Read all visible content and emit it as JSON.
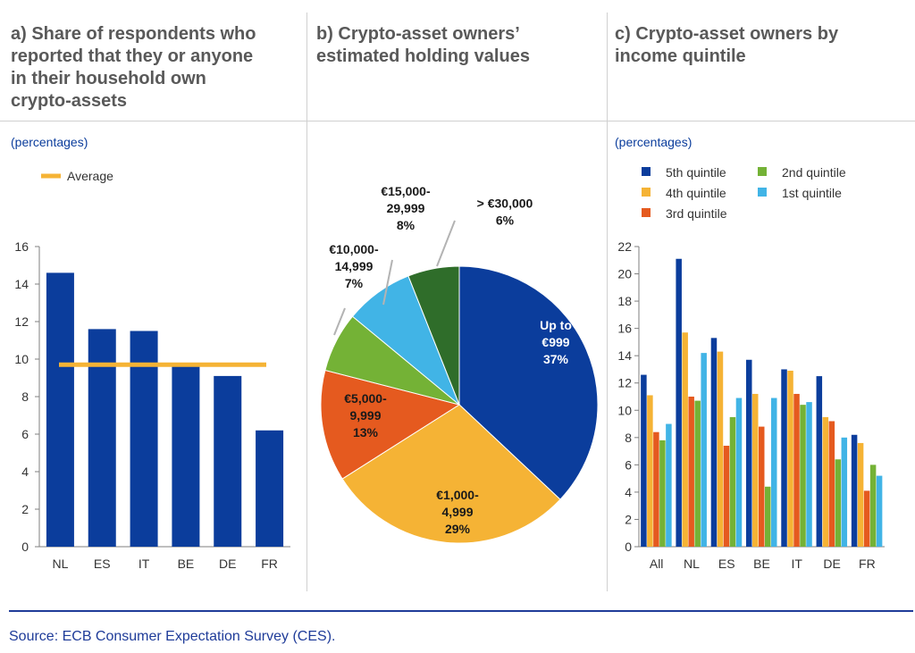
{
  "source": "Source: ECB Consumer Expectation Survey (CES).",
  "panels": {
    "a": {
      "title": [
        "a) Share of respondents who",
        "reported that they or anyone",
        "in their household own",
        "crypto-assets"
      ],
      "units": "(percentages)"
    },
    "b": {
      "title": [
        "b) Crypto-asset owners’",
        "estimated holding values"
      ]
    },
    "c": {
      "title": [
        "c) Crypto-asset owners by",
        "income quintile"
      ],
      "units": "(percentages)"
    }
  },
  "colors": {
    "navy": "#0b3d9c",
    "orange": "#f5b335",
    "red": "#e55a1f",
    "green": "#74b236",
    "lightblue": "#41b4e6",
    "darkgreen": "#2f6d2a",
    "axis": "#7f7f7f",
    "text": "#333333"
  },
  "chart_data": [
    {
      "id": "a",
      "type": "bar",
      "categories": [
        "NL",
        "ES",
        "IT",
        "BE",
        "DE",
        "FR"
      ],
      "values": [
        14.6,
        11.6,
        11.5,
        9.7,
        9.1,
        6.2
      ],
      "average": 9.7,
      "legend": "Average",
      "ylim": [
        0,
        16
      ],
      "yticks": [
        "0",
        "2",
        "4",
        "6",
        "8",
        "10",
        "12",
        "14",
        "16"
      ],
      "grid": false
    },
    {
      "id": "b",
      "type": "pie",
      "slices": [
        {
          "label": [
            "Up to",
            "€999",
            "37%"
          ],
          "value": 37,
          "color": "#0b3d9c",
          "text_color": "#ffffff"
        },
        {
          "label": [
            "€1,000-",
            "4,999",
            "29%"
          ],
          "value": 29,
          "color": "#f5b335",
          "text_color": "#1a1a1a"
        },
        {
          "label": [
            "€5,000-",
            "9,999",
            "13%"
          ],
          "value": 13,
          "color": "#e55a1f",
          "text_color": "#1a1a1a"
        },
        {
          "label": [
            "€10,000-",
            "14,999",
            "7%"
          ],
          "value": 7,
          "color": "#74b236",
          "text_color": "#1a1a1a"
        },
        {
          "label": [
            "€15,000-",
            "29,999",
            "8%"
          ],
          "value": 8,
          "color": "#41b4e6",
          "text_color": "#1a1a1a"
        },
        {
          "label": [
            "> €30,000",
            "6%"
          ],
          "value": 6,
          "color": "#2f6d2a",
          "text_color": "#1a1a1a"
        }
      ]
    },
    {
      "id": "c",
      "type": "bar",
      "categories": [
        "All",
        "NL",
        "ES",
        "BE",
        "IT",
        "DE",
        "FR"
      ],
      "series": [
        {
          "name": "5th quintile",
          "color": "#0b3d9c",
          "values": [
            12.6,
            21.1,
            15.3,
            13.7,
            13.0,
            12.5,
            8.2
          ]
        },
        {
          "name": "4th quintile",
          "color": "#f5b335",
          "values": [
            11.1,
            15.7,
            14.3,
            11.2,
            12.9,
            9.5,
            7.6
          ]
        },
        {
          "name": "3rd quintile",
          "color": "#e55a1f",
          "values": [
            8.4,
            11.0,
            7.4,
            8.8,
            11.2,
            9.2,
            4.1
          ]
        },
        {
          "name": "2nd quintile",
          "color": "#74b236",
          "values": [
            7.8,
            10.7,
            9.5,
            4.4,
            10.4,
            6.4,
            6.0
          ]
        },
        {
          "name": "1st quintile",
          "color": "#41b4e6",
          "values": [
            9.0,
            14.2,
            10.9,
            10.9,
            10.6,
            8.0,
            5.2
          ]
        }
      ],
      "ylim": [
        0,
        22
      ],
      "yticks": [
        "0",
        "2",
        "4",
        "6",
        "8",
        "10",
        "12",
        "14",
        "16",
        "18",
        "20",
        "22"
      ],
      "grid": false
    }
  ]
}
